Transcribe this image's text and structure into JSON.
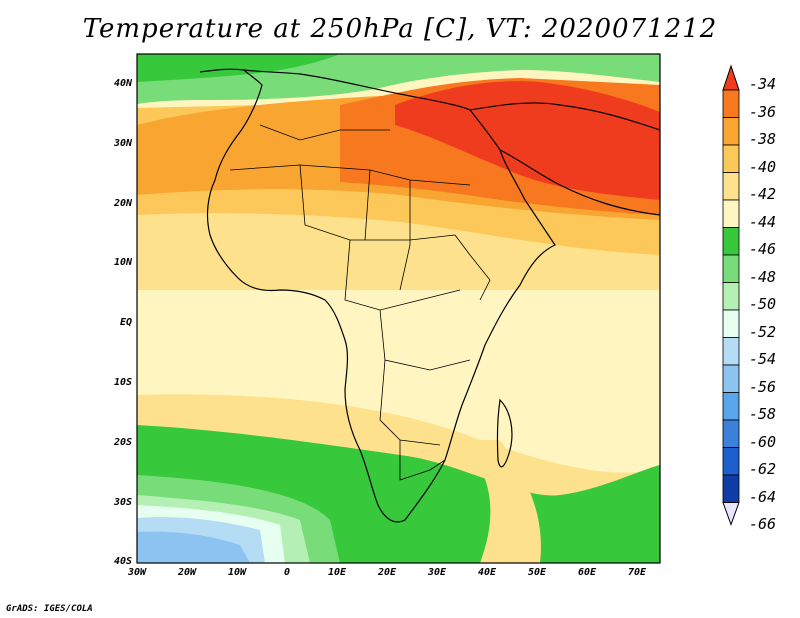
{
  "title": "Temperature at 250hPa [C], VT: 2020071212",
  "credit": "GrADS: IGES/COLA",
  "lat_labels": [
    "40N",
    "30N",
    "20N",
    "10N",
    "EQ",
    "10S",
    "20S",
    "30S",
    "40S"
  ],
  "lon_labels": [
    "30W",
    "20W",
    "10W",
    "0",
    "10E",
    "20E",
    "30E",
    "40E",
    "50E",
    "60E",
    "70E"
  ],
  "colorbar": {
    "labels": [
      "-34",
      "-36",
      "-38",
      "-40",
      "-42",
      "-44",
      "-46",
      "-48",
      "-50",
      "-52",
      "-54",
      "-56",
      "-58",
      "-60",
      "-62",
      "-64",
      "-66"
    ],
    "colors": [
      "#f03c1e",
      "#f7781e",
      "#f9a532",
      "#fcc85a",
      "#fee18c",
      "#fff5c0",
      "#37c83c",
      "#78dc78",
      "#b4f0b4",
      "#e6fff0",
      "#b4dcf5",
      "#8cc3f0",
      "#5aa5eb",
      "#3c82dc",
      "#1e5fcd",
      "#0f3ca5",
      "#0a1e78"
    ]
  }
}
